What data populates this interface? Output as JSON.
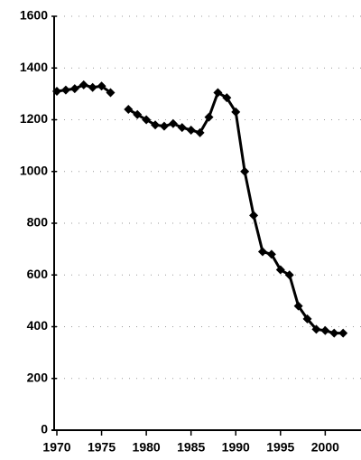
{
  "chart_data": {
    "type": "line",
    "x": [
      1970,
      1971,
      1972,
      1973,
      1974,
      1975,
      1976,
      1977,
      1978,
      1979,
      1980,
      1981,
      1982,
      1983,
      1984,
      1985,
      1986,
      1987,
      1988,
      1989,
      1990,
      1991,
      1992,
      1993,
      1994,
      1995,
      1996,
      1997,
      1998,
      1999,
      2000,
      2001,
      2002
    ],
    "series": [
      {
        "name": null,
        "color": "#000000",
        "values": [
          1310,
          1315,
          1320,
          1335,
          1325,
          1330,
          1305,
          null,
          1240,
          1220,
          1200,
          1180,
          1175,
          1185,
          1170,
          1160,
          1150,
          1210,
          1305,
          1285,
          1230,
          1000,
          830,
          690,
          680,
          620,
          600,
          480,
          430,
          390,
          385,
          375,
          375
        ]
      }
    ],
    "xlim": [
      1970,
      2004
    ],
    "xticks": [
      1970,
      1975,
      1980,
      1985,
      1990,
      1995,
      2000
    ],
    "ylim": [
      0,
      1600
    ],
    "yticks": [
      0,
      200,
      400,
      600,
      800,
      1000,
      1200,
      1400,
      1600
    ],
    "grid": true
  }
}
